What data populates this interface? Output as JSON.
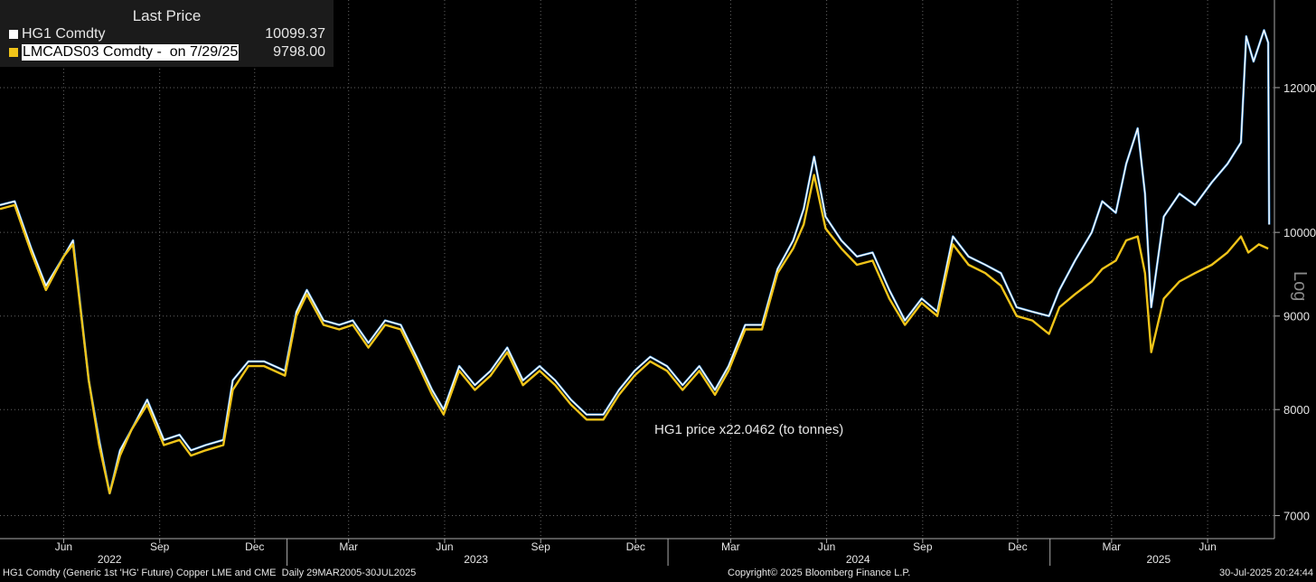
{
  "legend": {
    "header": "Last Price",
    "items": [
      {
        "name": "HG1 Comdty",
        "value": "10099.37",
        "color": "#ffffff"
      },
      {
        "name": "LMCADS03 Comdty -  on 7/29/25",
        "value": "9798.00",
        "color": "#f0c419"
      }
    ]
  },
  "footer": {
    "left": "HG1 Comdty (Generic 1st 'HG' Future) Copper LME and CME  Daily 29MAR2005-30JUL2025",
    "center": "Copyright© 2025 Bloomberg Finance L.P.",
    "right": "30-Jul-2025 20:24:44"
  },
  "chart_data": {
    "type": "line",
    "scale": "log",
    "scale_label": "Log",
    "annotation": "HG1 price x22.0462 (to tonnes)",
    "ylim": [
      6800,
      13400
    ],
    "y_ticks": [
      7000,
      8000,
      9000,
      10000,
      12000
    ],
    "x_months": [
      {
        "label": "Jun",
        "date": "2022-06-01"
      },
      {
        "label": "Sep",
        "date": "2022-09-01"
      },
      {
        "label": "Dec",
        "date": "2022-12-01"
      },
      {
        "label": "Mar",
        "date": "2023-03-01"
      },
      {
        "label": "Jun",
        "date": "2023-06-01"
      },
      {
        "label": "Sep",
        "date": "2023-09-01"
      },
      {
        "label": "Dec",
        "date": "2023-12-01"
      },
      {
        "label": "Mar",
        "date": "2024-03-01"
      },
      {
        "label": "Jun",
        "date": "2024-06-01"
      },
      {
        "label": "Sep",
        "date": "2024-09-01"
      },
      {
        "label": "Dec",
        "date": "2024-12-01"
      },
      {
        "label": "Mar",
        "date": "2025-03-01"
      },
      {
        "label": "Jun",
        "date": "2025-06-01"
      }
    ],
    "x_years": [
      {
        "label": "2022",
        "date": "2022-07-15"
      },
      {
        "label": "2023",
        "date": "2023-07-01"
      },
      {
        "label": "2024",
        "date": "2024-07-01"
      },
      {
        "label": "2025",
        "date": "2025-04-15"
      }
    ],
    "series": [
      {
        "name": "HG1 Comdty",
        "color": "#ffffff",
        "edge_color": "#3d8fd6",
        "points": [
          [
            "2022-04-01",
            10350
          ],
          [
            "2022-04-15",
            10400
          ],
          [
            "2022-05-01",
            9800
          ],
          [
            "2022-05-15",
            9350
          ],
          [
            "2022-06-01",
            9700
          ],
          [
            "2022-06-10",
            9900
          ],
          [
            "2022-06-25",
            8300
          ],
          [
            "2022-07-05",
            7700
          ],
          [
            "2022-07-15",
            7200
          ],
          [
            "2022-07-25",
            7600
          ],
          [
            "2022-08-05",
            7800
          ],
          [
            "2022-08-20",
            8100
          ],
          [
            "2022-09-05",
            7700
          ],
          [
            "2022-09-20",
            7750
          ],
          [
            "2022-10-01",
            7600
          ],
          [
            "2022-10-15",
            7650
          ],
          [
            "2022-11-01",
            7700
          ],
          [
            "2022-11-10",
            8300
          ],
          [
            "2022-11-25",
            8500
          ],
          [
            "2022-12-10",
            8500
          ],
          [
            "2022-12-30",
            8400
          ],
          [
            "2023-01-10",
            9050
          ],
          [
            "2023-01-20",
            9300
          ],
          [
            "2023-02-05",
            8950
          ],
          [
            "2023-02-20",
            8900
          ],
          [
            "2023-03-05",
            8950
          ],
          [
            "2023-03-20",
            8700
          ],
          [
            "2023-04-05",
            8950
          ],
          [
            "2023-04-20",
            8900
          ],
          [
            "2023-05-05",
            8550
          ],
          [
            "2023-05-20",
            8200
          ],
          [
            "2023-05-31",
            8000
          ],
          [
            "2023-06-15",
            8450
          ],
          [
            "2023-06-30",
            8250
          ],
          [
            "2023-07-15",
            8400
          ],
          [
            "2023-07-31",
            8650
          ],
          [
            "2023-08-15",
            8300
          ],
          [
            "2023-08-31",
            8450
          ],
          [
            "2023-09-15",
            8300
          ],
          [
            "2023-09-30",
            8100
          ],
          [
            "2023-10-15",
            7950
          ],
          [
            "2023-10-31",
            7950
          ],
          [
            "2023-11-15",
            8200
          ],
          [
            "2023-11-30",
            8400
          ],
          [
            "2023-12-15",
            8550
          ],
          [
            "2023-12-31",
            8450
          ],
          [
            "2024-01-15",
            8250
          ],
          [
            "2024-01-31",
            8450
          ],
          [
            "2024-02-15",
            8200
          ],
          [
            "2024-02-28",
            8450
          ],
          [
            "2024-03-15",
            8900
          ],
          [
            "2024-03-31",
            8900
          ],
          [
            "2024-04-15",
            9550
          ],
          [
            "2024-04-30",
            9900
          ],
          [
            "2024-05-10",
            10300
          ],
          [
            "2024-05-20",
            11000
          ],
          [
            "2024-05-31",
            10200
          ],
          [
            "2024-06-15",
            9900
          ],
          [
            "2024-06-30",
            9700
          ],
          [
            "2024-07-15",
            9750
          ],
          [
            "2024-07-31",
            9300
          ],
          [
            "2024-08-15",
            8950
          ],
          [
            "2024-08-31",
            9200
          ],
          [
            "2024-09-15",
            9050
          ],
          [
            "2024-09-30",
            9950
          ],
          [
            "2024-10-15",
            9700
          ],
          [
            "2024-10-31",
            9600
          ],
          [
            "2024-11-15",
            9500
          ],
          [
            "2024-11-30",
            9100
          ],
          [
            "2024-12-15",
            9050
          ],
          [
            "2024-12-31",
            9000
          ],
          [
            "2025-01-10",
            9300
          ],
          [
            "2025-01-25",
            9650
          ],
          [
            "2025-02-10",
            10000
          ],
          [
            "2025-02-20",
            10400
          ],
          [
            "2025-03-05",
            10250
          ],
          [
            "2025-03-15",
            10900
          ],
          [
            "2025-03-26",
            11400
          ],
          [
            "2025-04-02",
            10500
          ],
          [
            "2025-04-08",
            9100
          ],
          [
            "2025-04-20",
            10200
          ],
          [
            "2025-05-05",
            10500
          ],
          [
            "2025-05-20",
            10350
          ],
          [
            "2025-06-05",
            10650
          ],
          [
            "2025-06-20",
            10900
          ],
          [
            "2025-07-03",
            11200
          ],
          [
            "2025-07-08",
            12800
          ],
          [
            "2025-07-15",
            12400
          ],
          [
            "2025-07-25",
            12900
          ],
          [
            "2025-07-29",
            12700
          ],
          [
            "2025-07-30",
            10099
          ]
        ]
      },
      {
        "name": "LMCADS03 Comdty",
        "color": "#f0c419",
        "points": [
          [
            "2022-04-01",
            10300
          ],
          [
            "2022-04-15",
            10350
          ],
          [
            "2022-05-01",
            9750
          ],
          [
            "2022-05-15",
            9300
          ],
          [
            "2022-06-01",
            9700
          ],
          [
            "2022-06-10",
            9850
          ],
          [
            "2022-06-25",
            8300
          ],
          [
            "2022-07-05",
            7650
          ],
          [
            "2022-07-15",
            7200
          ],
          [
            "2022-07-25",
            7550
          ],
          [
            "2022-08-05",
            7800
          ],
          [
            "2022-08-20",
            8050
          ],
          [
            "2022-09-05",
            7650
          ],
          [
            "2022-09-20",
            7700
          ],
          [
            "2022-10-01",
            7550
          ],
          [
            "2022-10-15",
            7600
          ],
          [
            "2022-11-01",
            7650
          ],
          [
            "2022-11-10",
            8200
          ],
          [
            "2022-11-25",
            8450
          ],
          [
            "2022-12-10",
            8450
          ],
          [
            "2022-12-30",
            8350
          ],
          [
            "2023-01-10",
            9000
          ],
          [
            "2023-01-20",
            9250
          ],
          [
            "2023-02-05",
            8900
          ],
          [
            "2023-02-20",
            8850
          ],
          [
            "2023-03-05",
            8900
          ],
          [
            "2023-03-20",
            8650
          ],
          [
            "2023-04-05",
            8900
          ],
          [
            "2023-04-20",
            8850
          ],
          [
            "2023-05-05",
            8500
          ],
          [
            "2023-05-20",
            8150
          ],
          [
            "2023-05-31",
            7950
          ],
          [
            "2023-06-15",
            8400
          ],
          [
            "2023-06-30",
            8200
          ],
          [
            "2023-07-15",
            8350
          ],
          [
            "2023-07-31",
            8600
          ],
          [
            "2023-08-15",
            8250
          ],
          [
            "2023-08-31",
            8400
          ],
          [
            "2023-09-15",
            8250
          ],
          [
            "2023-09-30",
            8050
          ],
          [
            "2023-10-15",
            7900
          ],
          [
            "2023-10-31",
            7900
          ],
          [
            "2023-11-15",
            8150
          ],
          [
            "2023-11-30",
            8350
          ],
          [
            "2023-12-15",
            8500
          ],
          [
            "2023-12-31",
            8400
          ],
          [
            "2024-01-15",
            8200
          ],
          [
            "2024-01-31",
            8400
          ],
          [
            "2024-02-15",
            8150
          ],
          [
            "2024-02-28",
            8400
          ],
          [
            "2024-03-15",
            8850
          ],
          [
            "2024-03-31",
            8850
          ],
          [
            "2024-04-15",
            9500
          ],
          [
            "2024-04-30",
            9800
          ],
          [
            "2024-05-10",
            10100
          ],
          [
            "2024-05-20",
            10750
          ],
          [
            "2024-05-31",
            10050
          ],
          [
            "2024-06-15",
            9800
          ],
          [
            "2024-06-30",
            9600
          ],
          [
            "2024-07-15",
            9650
          ],
          [
            "2024-07-31",
            9200
          ],
          [
            "2024-08-15",
            8900
          ],
          [
            "2024-08-31",
            9150
          ],
          [
            "2024-09-15",
            9000
          ],
          [
            "2024-09-30",
            9850
          ],
          [
            "2024-10-15",
            9600
          ],
          [
            "2024-10-31",
            9500
          ],
          [
            "2024-11-15",
            9350
          ],
          [
            "2024-11-30",
            9000
          ],
          [
            "2024-12-15",
            8950
          ],
          [
            "2024-12-31",
            8800
          ],
          [
            "2025-01-10",
            9100
          ],
          [
            "2025-01-25",
            9250
          ],
          [
            "2025-02-10",
            9400
          ],
          [
            "2025-02-20",
            9550
          ],
          [
            "2025-03-05",
            9650
          ],
          [
            "2025-03-15",
            9900
          ],
          [
            "2025-03-26",
            9950
          ],
          [
            "2025-04-02",
            9500
          ],
          [
            "2025-04-08",
            8600
          ],
          [
            "2025-04-20",
            9200
          ],
          [
            "2025-05-05",
            9400
          ],
          [
            "2025-05-20",
            9500
          ],
          [
            "2025-06-05",
            9600
          ],
          [
            "2025-06-20",
            9750
          ],
          [
            "2025-07-03",
            9950
          ],
          [
            "2025-07-10",
            9750
          ],
          [
            "2025-07-20",
            9850
          ],
          [
            "2025-07-29",
            9798
          ]
        ]
      }
    ]
  }
}
